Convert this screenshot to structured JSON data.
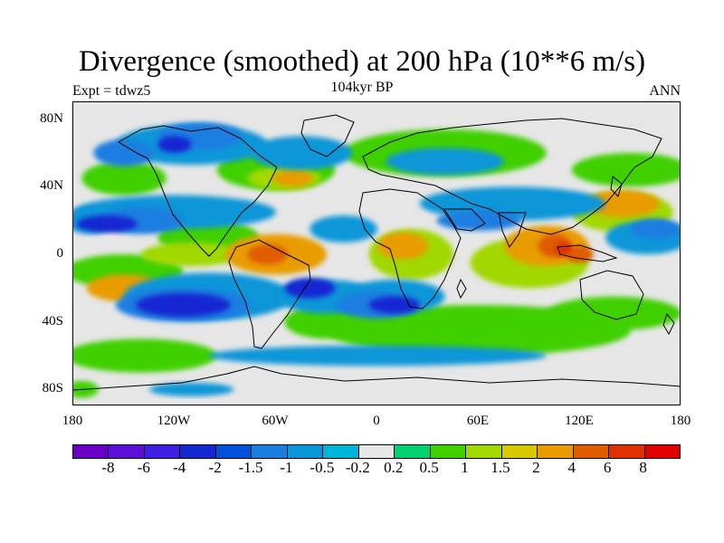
{
  "header": {
    "title": "Divergence (smoothed) at 200 hPa (10**6 m/s)",
    "center": "104kyr BP",
    "left": "Expt = tdwz5",
    "right": "ANN"
  },
  "map": {
    "projection": "cylindrical-equidistant",
    "lon_range": [
      -180,
      180
    ],
    "lat_range": [
      -90,
      90
    ],
    "lat_labels": [
      "80N",
      "40N",
      "0",
      "40S",
      "80S"
    ],
    "lat_values": [
      80,
      40,
      0,
      -40,
      -80
    ],
    "lon_labels": [
      "180",
      "120W",
      "60W",
      "0",
      "60E",
      "120E",
      "180"
    ],
    "lon_values": [
      -180,
      -120,
      -60,
      0,
      60,
      120,
      180
    ],
    "fill_regions": [
      {
        "level": 0.5,
        "blobs": [
          [
            -150,
            45,
            25,
            10
          ],
          [
            -60,
            50,
            35,
            12
          ],
          [
            40,
            60,
            60,
            14
          ],
          [
            150,
            50,
            35,
            10
          ],
          [
            -150,
            -10,
            35,
            10
          ],
          [
            -100,
            10,
            30,
            10
          ],
          [
            -30,
            -40,
            25,
            10
          ],
          [
            60,
            -45,
            90,
            15
          ],
          [
            -140,
            -60,
            45,
            10
          ],
          [
            140,
            -35,
            40,
            10
          ],
          [
            -175,
            -80,
            10,
            5
          ]
        ]
      },
      {
        "level": 1,
        "blobs": [
          [
            -55,
            45,
            22,
            7
          ],
          [
            -110,
            0,
            30,
            7
          ],
          [
            20,
            0,
            25,
            15
          ],
          [
            90,
            -5,
            35,
            15
          ],
          [
            145,
            25,
            30,
            12
          ]
        ]
      },
      {
        "level": 2,
        "blobs": [
          [
            -60,
            0,
            30,
            12
          ],
          [
            -150,
            -20,
            22,
            8
          ],
          [
            15,
            5,
            15,
            8
          ],
          [
            100,
            5,
            25,
            12
          ],
          [
            145,
            30,
            22,
            8
          ],
          [
            -50,
            45,
            12,
            5
          ]
        ]
      },
      {
        "level": 4,
        "blobs": [
          [
            -65,
            0,
            12,
            6
          ],
          [
            105,
            5,
            10,
            7
          ],
          [
            120,
            0,
            8,
            5
          ]
        ]
      },
      {
        "level": 6,
        "blobs": [
          [
            110,
            3,
            5,
            4
          ]
        ]
      },
      {
        "level": -0.5,
        "blobs": [
          [
            -110,
            65,
            45,
            12
          ],
          [
            -45,
            60,
            30,
            10
          ],
          [
            80,
            30,
            55,
            10
          ],
          [
            40,
            55,
            35,
            8
          ],
          [
            -120,
            25,
            60,
            10
          ],
          [
            -100,
            -25,
            50,
            14
          ],
          [
            -30,
            -25,
            30,
            10
          ],
          [
            10,
            -25,
            30,
            10
          ],
          [
            -20,
            15,
            20,
            8
          ],
          [
            160,
            10,
            25,
            10
          ],
          [
            -170,
            20,
            15,
            8
          ],
          [
            0,
            -60,
            100,
            6
          ],
          [
            -110,
            -80,
            25,
            4
          ]
        ]
      },
      {
        "level": -1,
        "blobs": [
          [
            -115,
            -30,
            40,
            10
          ],
          [
            -150,
            60,
            18,
            8
          ],
          [
            -105,
            70,
            25,
            8
          ],
          [
            0,
            -30,
            25,
            8
          ],
          [
            -140,
            20,
            25,
            8
          ],
          [
            165,
            15,
            15,
            6
          ],
          [
            60,
            20,
            25,
            6
          ]
        ]
      },
      {
        "level": -2,
        "blobs": [
          [
            -115,
            -30,
            28,
            7
          ],
          [
            -160,
            18,
            18,
            5
          ],
          [
            -40,
            -20,
            15,
            6
          ],
          [
            10,
            -30,
            15,
            5
          ],
          [
            -120,
            65,
            10,
            5
          ]
        ]
      }
    ]
  },
  "colorbar": {
    "labels": [
      "-8",
      "-6",
      "-4",
      "-2",
      "-1.5",
      "-1",
      "-0.5",
      "-0.2",
      "0.2",
      "0.5",
      "1",
      "1.5",
      "2",
      "4",
      "6",
      "8"
    ],
    "colors": [
      "#6a00c8",
      "#5a10d8",
      "#3d20e0",
      "#1428d2",
      "#0050d8",
      "#1a7ee0",
      "#0896d8",
      "#00b4d8",
      "#e6e6e6",
      "#00d070",
      "#40d000",
      "#a0d800",
      "#d8c800",
      "#e89c00",
      "#e05c00",
      "#e03000",
      "#e00000"
    ]
  }
}
